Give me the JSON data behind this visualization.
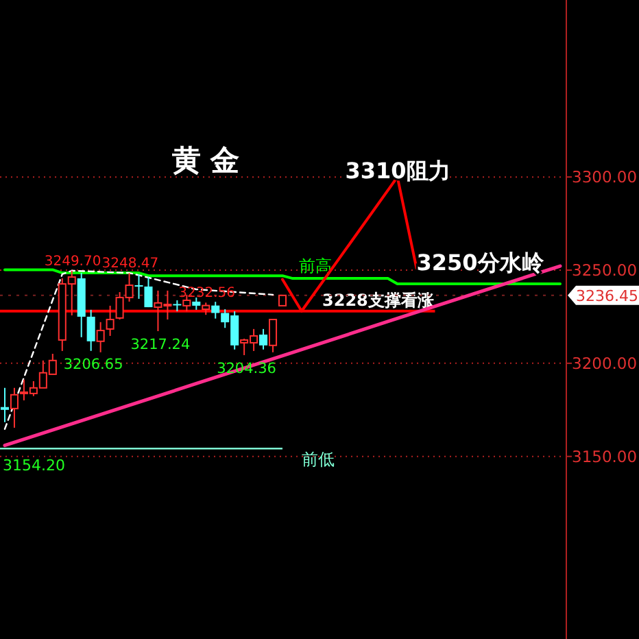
{
  "chart_data": {
    "type": "candlestick",
    "title": "黄 金",
    "categories": [
      null,
      null,
      null,
      null,
      null,
      null,
      null,
      null,
      null,
      null,
      null,
      null,
      null,
      null,
      null,
      null,
      null,
      null,
      null,
      null,
      null,
      null,
      null,
      null,
      null,
      null,
      null,
      null,
      null,
      null,
      null,
      null,
      null,
      null,
      null,
      null,
      null,
      null,
      null,
      null,
      null,
      null,
      null,
      null,
      null,
      null,
      null,
      null,
      null,
      null,
      null,
      null,
      null,
      null,
      null,
      null,
      null,
      null,
      null
    ],
    "ohlc": [
      [
        3176.5,
        3186.8,
        3168.4,
        3175.0
      ],
      [
        3175.7,
        3186.8,
        3165.4,
        3183.1
      ],
      [
        3184.0,
        3191.2,
        3180.1,
        3184.5
      ],
      [
        3183.8,
        3190.4,
        3182.4,
        3186.8
      ],
      [
        3186.8,
        3201.5,
        3186.8,
        3194.9
      ],
      [
        3194.1,
        3205.1,
        3194.1,
        3201.5
      ],
      [
        3212.5,
        3245.6,
        3206.6,
        3242.6
      ],
      [
        3242.6,
        3249.7,
        3225.7,
        3246.3
      ],
      [
        3245.6,
        3248.5,
        3214.0,
        3225.0
      ],
      [
        3225.0,
        3228.7,
        3206.65,
        3211.8
      ],
      [
        3211.8,
        3222.1,
        3205.9,
        3217.6
      ],
      [
        3218.4,
        3230.9,
        3214.7,
        3223.5
      ],
      [
        3224.3,
        3238.2,
        3223.5,
        3235.3
      ],
      [
        3235.3,
        3248.47,
        3233.1,
        3241.9
      ],
      [
        3241.9,
        3247.8,
        3234.6,
        3241.2
      ],
      [
        3241.2,
        3246.3,
        3230.1,
        3230.1
      ],
      [
        3230.1,
        3239.0,
        3217.24,
        3232.4
      ],
      [
        3230.9,
        3239.0,
        3223.5,
        3231.6
      ],
      [
        3231.8,
        3233.8,
        3227.9,
        3231.4
      ],
      [
        3230.9,
        3236.8,
        3227.9,
        3233.8
      ],
      [
        3233.1,
        3235.3,
        3228.7,
        3230.9
      ],
      [
        3229.0,
        3232.56,
        3226.0,
        3231.0
      ],
      [
        3231.0,
        3233.0,
        3224.0,
        3227.0
      ],
      [
        3227.0,
        3229.0,
        3219.0,
        3222.0
      ],
      [
        3225.7,
        3227.9,
        3207.4,
        3209.6
      ],
      [
        3211.0,
        3213.2,
        3204.36,
        3212.5
      ],
      [
        3211.0,
        3218.4,
        3206.6,
        3214.7
      ],
      [
        3215.4,
        3218.4,
        3207.4,
        3209.6
      ],
      [
        3209.6,
        3223.5,
        3205.9,
        3223.5
      ],
      [
        3230.9,
        3236.45,
        3230.9,
        3236.45
      ],
      null,
      null,
      null,
      null,
      null,
      null,
      null,
      null,
      null,
      null,
      null,
      null,
      null,
      null,
      null,
      null,
      null,
      null,
      null,
      null,
      null,
      null,
      null,
      null,
      null,
      null,
      null,
      null,
      null
    ],
    "series": [
      {
        "type": "line",
        "name": "前高",
        "color": "#00ff00",
        "values": [
          3250.2,
          3250.2,
          3250.2,
          3250.2,
          3250.2,
          3250.2,
          3248.5,
          3248.5,
          3248.5,
          3248.5,
          3248.5,
          3248.5,
          3248.5,
          3248.5,
          3248.5,
          3247.0,
          3247.0,
          3247.0,
          3247.0,
          3247.0,
          3247.0,
          3247.0,
          3247.0,
          3247.0,
          3247.0,
          3247.0,
          3247.0,
          3247.0,
          3247.0,
          3247.0,
          3245.6,
          3245.6,
          3245.6,
          3245.6,
          3245.6,
          3245.6,
          3245.6,
          3245.6,
          3245.6,
          3245.6,
          3245.6,
          3242.6,
          3242.6,
          3242.6,
          3242.6,
          3242.6,
          3242.6,
          3242.6,
          3242.6,
          3242.6,
          3242.6,
          3242.6,
          3242.6,
          3242.6,
          3242.6,
          3242.6,
          3242.6,
          3242.6,
          3242.6
        ]
      },
      {
        "type": "line",
        "color": "#ff2d8c",
        "values": [
          3155.9,
          null,
          null,
          null,
          null,
          null,
          null,
          null,
          null,
          null,
          3172.5,
          null,
          null,
          null,
          null,
          null,
          null,
          null,
          null,
          null,
          3189.1,
          null,
          null,
          null,
          null,
          null,
          null,
          null,
          null,
          null,
          3205.7,
          null,
          null,
          null,
          null,
          null,
          null,
          null,
          null,
          null,
          3222.4,
          null,
          null,
          null,
          null,
          null,
          null,
          null,
          null,
          null,
          3239.0,
          null,
          null,
          null,
          null,
          null,
          null,
          null,
          3252.2
        ]
      },
      {
        "type": "line",
        "color": "#ffffff",
        "line_style": "dashed",
        "values": [
          3164.7,
          null,
          null,
          null,
          null,
          null,
          3247.8,
          3249.7,
          null,
          null,
          null,
          null,
          null,
          3248.5,
          null,
          null,
          null,
          null,
          null,
          null,
          3239.7,
          null,
          null,
          null,
          null,
          null,
          null,
          null,
          3236.8,
          null,
          null,
          null,
          null,
          null,
          null,
          null,
          null,
          null,
          null,
          null,
          null,
          null,
          null,
          null,
          null,
          null,
          null,
          null,
          null,
          null,
          null,
          null,
          null,
          null,
          null,
          null,
          null,
          null,
          null
        ]
      },
      {
        "type": "line",
        "color": "#ff0000",
        "values": [
          null,
          null,
          null,
          null,
          null,
          null,
          null,
          null,
          null,
          null,
          null,
          null,
          null,
          null,
          null,
          null,
          null,
          null,
          null,
          null,
          null,
          null,
          null,
          null,
          null,
          null,
          null,
          null,
          null,
          3245.0,
          null,
          3228.0,
          null,
          null,
          null,
          null,
          null,
          null,
          null,
          null,
          null,
          3300.0,
          null,
          3251.0,
          null,
          null,
          null,
          null,
          null,
          null,
          null,
          null,
          null,
          null,
          null,
          null,
          null,
          null,
          null
        ]
      }
    ],
    "ref_lines": [
      {
        "axis": "y",
        "value": 3228,
        "label": "3228支撑看涨",
        "color": "#ff0000"
      },
      {
        "axis": "y",
        "value": 3154.2,
        "label": "前低",
        "color": "#7fffd4"
      },
      {
        "axis": "y",
        "value": 3236.45,
        "label": "3236.45"
      }
    ],
    "annotations": [
      {
        "text": "3249.70",
        "y": 3249.7
      },
      {
        "text": "3248.47",
        "y": 3248.47
      },
      {
        "text": "3232.56",
        "y": 3232.56
      },
      {
        "text": "3206.65",
        "y": 3206.65
      },
      {
        "text": "3217.24",
        "y": 3217.24
      },
      {
        "text": "3204.36",
        "y": 3204.36
      },
      "3310阻力",
      "3250分水岭",
      "3154.20"
    ],
    "ylim": [
      3052,
      3395
    ],
    "yticks": [
      {
        "value": 3150,
        "label": "3150.00"
      },
      {
        "value": 3200,
        "label": "3200.00"
      },
      {
        "value": 3250,
        "label": "3250.00"
      },
      {
        "value": 3300,
        "label": "3300.00"
      }
    ],
    "grid": "y",
    "tick_labels": "y"
  }
}
